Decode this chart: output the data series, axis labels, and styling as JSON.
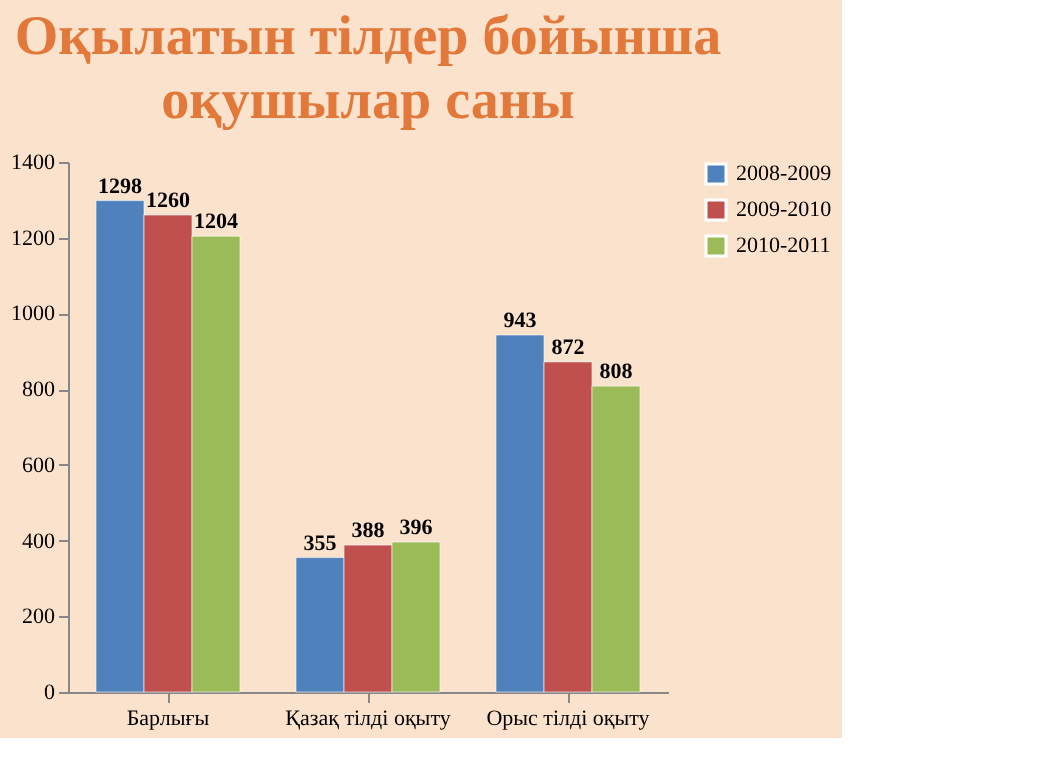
{
  "chart_data": {
    "type": "bar",
    "title": "Оқылатын тілдер бойынша оқушылар саны",
    "categories": [
      "Барлығы",
      "Қазақ тілді оқыту",
      "Орыс тілді оқыту"
    ],
    "series": [
      {
        "name": "2008-2009",
        "color": "#4f81bd",
        "values": [
          1298,
          355,
          943
        ]
      },
      {
        "name": "2009-2010",
        "color": "#c0504d",
        "values": [
          1260,
          388,
          872
        ]
      },
      {
        "name": "2010-2011",
        "color": "#9bbb59",
        "values": [
          1204,
          396,
          808
        ]
      }
    ],
    "ylim": [
      0,
      1400
    ],
    "yticks": [
      0,
      200,
      400,
      600,
      800,
      1000,
      1200,
      1400
    ],
    "grid": false,
    "legend": "right",
    "data_labels": true
  }
}
